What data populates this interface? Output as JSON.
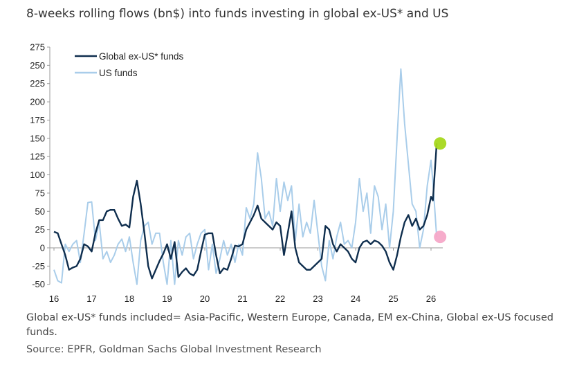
{
  "title": "8-weeks rolling flows (bn$) into funds investing in global ex-US* and US",
  "note": "Global ex-US* funds included= Asia-Pacific, Western Europe, Canada, EM ex-China, Global ex-US focused funds.",
  "source": "Source: EPFR, Goldman Sachs Global Investment Research",
  "chart_data": {
    "type": "line",
    "title": "8-weeks rolling flows (bn$) into funds investing in global ex-US* and US",
    "xlabel": "",
    "ylabel": "",
    "ylim": [
      -50,
      275
    ],
    "yticks": [
      275,
      250,
      225,
      200,
      175,
      150,
      125,
      100,
      75,
      50,
      25,
      0,
      -25,
      -50
    ],
    "xlim": [
      2016,
      2026.3
    ],
    "xticks": [
      {
        "v": 2016,
        "label": "16"
      },
      {
        "v": 2017,
        "label": "17"
      },
      {
        "v": 2018,
        "label": "18"
      },
      {
        "v": 2019,
        "label": "19"
      },
      {
        "v": 2020,
        "label": "20"
      },
      {
        "v": 2021,
        "label": "21"
      },
      {
        "v": 2022,
        "label": "22"
      },
      {
        "v": 2023,
        "label": "23"
      },
      {
        "v": 2024,
        "label": "24"
      },
      {
        "v": 2025,
        "label": "25"
      },
      {
        "v": 2026,
        "label": "26"
      }
    ],
    "legend": "top-left",
    "grid": false,
    "series": [
      {
        "name": "Global ex-US* funds",
        "color": "#0f2e4e",
        "x": [
          2016.0,
          2016.1,
          2016.2,
          2016.3,
          2016.4,
          2016.5,
          2016.6,
          2016.7,
          2016.8,
          2016.9,
          2017.0,
          2017.1,
          2017.2,
          2017.3,
          2017.4,
          2017.5,
          2017.6,
          2017.7,
          2017.8,
          2017.9,
          2018.0,
          2018.1,
          2018.2,
          2018.3,
          2018.4,
          2018.5,
          2018.6,
          2018.7,
          2018.8,
          2018.9,
          2019.0,
          2019.1,
          2019.2,
          2019.3,
          2019.4,
          2019.5,
          2019.6,
          2019.7,
          2019.8,
          2019.9,
          2020.0,
          2020.1,
          2020.2,
          2020.3,
          2020.4,
          2020.5,
          2020.6,
          2020.7,
          2020.8,
          2020.9,
          2021.0,
          2021.1,
          2021.2,
          2021.3,
          2021.4,
          2021.5,
          2021.6,
          2021.7,
          2021.8,
          2021.9,
          2022.0,
          2022.1,
          2022.2,
          2022.3,
          2022.4,
          2022.5,
          2022.6,
          2022.7,
          2022.8,
          2022.9,
          2023.0,
          2023.1,
          2023.2,
          2023.3,
          2023.4,
          2023.5,
          2023.6,
          2023.7,
          2023.8,
          2023.9,
          2024.0,
          2024.1,
          2024.2,
          2024.3,
          2024.4,
          2024.5,
          2024.6,
          2024.7,
          2024.8,
          2024.9,
          2025.0,
          2025.1,
          2025.2,
          2025.3,
          2025.4,
          2025.5,
          2025.6,
          2025.7,
          2025.8,
          2025.9,
          2026.0,
          2026.05,
          2026.15
        ],
        "values": [
          22,
          20,
          5,
          -10,
          -30,
          -27,
          -25,
          -15,
          5,
          2,
          -5,
          20,
          38,
          38,
          50,
          52,
          52,
          40,
          30,
          32,
          28,
          70,
          92,
          60,
          20,
          -25,
          -42,
          -30,
          -18,
          -8,
          5,
          -15,
          8,
          -40,
          -33,
          -28,
          -35,
          -38,
          -30,
          -5,
          18,
          20,
          20,
          -10,
          -35,
          -28,
          -30,
          -15,
          3,
          2,
          5,
          25,
          35,
          45,
          58,
          40,
          35,
          30,
          25,
          35,
          30,
          -10,
          20,
          50,
          0,
          -20,
          -25,
          -30,
          -30,
          -25,
          -20,
          -15,
          30,
          25,
          5,
          -5,
          5,
          0,
          -5,
          -15,
          -20,
          0,
          8,
          10,
          5,
          10,
          8,
          3,
          -5,
          -20,
          -30,
          -10,
          15,
          35,
          45,
          30,
          40,
          25,
          30,
          45,
          70,
          65,
          143
        ]
      },
      {
        "name": "US funds",
        "color": "#a9cdea",
        "x": [
          2016.0,
          2016.1,
          2016.2,
          2016.3,
          2016.4,
          2016.5,
          2016.6,
          2016.7,
          2016.8,
          2016.9,
          2017.0,
          2017.1,
          2017.2,
          2017.3,
          2017.4,
          2017.5,
          2017.6,
          2017.7,
          2017.8,
          2017.9,
          2018.0,
          2018.1,
          2018.2,
          2018.3,
          2018.4,
          2018.5,
          2018.6,
          2018.7,
          2018.8,
          2018.9,
          2019.0,
          2019.1,
          2019.2,
          2019.3,
          2019.4,
          2019.5,
          2019.6,
          2019.7,
          2019.8,
          2019.9,
          2020.0,
          2020.1,
          2020.2,
          2020.3,
          2020.4,
          2020.5,
          2020.6,
          2020.7,
          2020.8,
          2020.9,
          2021.0,
          2021.1,
          2021.2,
          2021.3,
          2021.4,
          2021.5,
          2021.6,
          2021.7,
          2021.8,
          2021.9,
          2022.0,
          2022.1,
          2022.2,
          2022.3,
          2022.4,
          2022.5,
          2022.6,
          2022.7,
          2022.8,
          2022.9,
          2023.0,
          2023.1,
          2023.2,
          2023.3,
          2023.4,
          2023.5,
          2023.6,
          2023.7,
          2023.8,
          2023.9,
          2024.0,
          2024.1,
          2024.2,
          2024.3,
          2024.4,
          2024.5,
          2024.6,
          2024.7,
          2024.8,
          2024.9,
          2025.0,
          2025.1,
          2025.2,
          2025.3,
          2025.4,
          2025.5,
          2025.6,
          2025.7,
          2025.8,
          2025.9,
          2026.0,
          2026.05,
          2026.15
        ],
        "values": [
          -30,
          -45,
          -48,
          5,
          -5,
          5,
          10,
          -20,
          20,
          62,
          63,
          10,
          35,
          -15,
          -5,
          -20,
          -10,
          5,
          12,
          -5,
          15,
          -20,
          -50,
          10,
          30,
          35,
          5,
          20,
          20,
          -20,
          -50,
          10,
          -50,
          10,
          -10,
          15,
          20,
          -15,
          5,
          20,
          25,
          -30,
          5,
          -35,
          -15,
          10,
          -10,
          5,
          -20,
          5,
          -10,
          55,
          40,
          60,
          130,
          95,
          40,
          50,
          30,
          95,
          50,
          90,
          65,
          85,
          10,
          60,
          15,
          35,
          20,
          65,
          20,
          -25,
          -45,
          10,
          -15,
          15,
          35,
          5,
          10,
          0,
          35,
          95,
          50,
          75,
          20,
          85,
          70,
          25,
          60,
          0,
          50,
          150,
          245,
          170,
          115,
          60,
          50,
          0,
          25,
          85,
          120,
          90,
          15
        ]
      }
    ],
    "markers": [
      {
        "series": "Global ex-US* funds",
        "x": 2026.15,
        "y": 143,
        "color": "#a6d81e"
      },
      {
        "series": "US funds",
        "x": 2026.15,
        "y": 15,
        "color": "#f5a8c8"
      }
    ]
  }
}
